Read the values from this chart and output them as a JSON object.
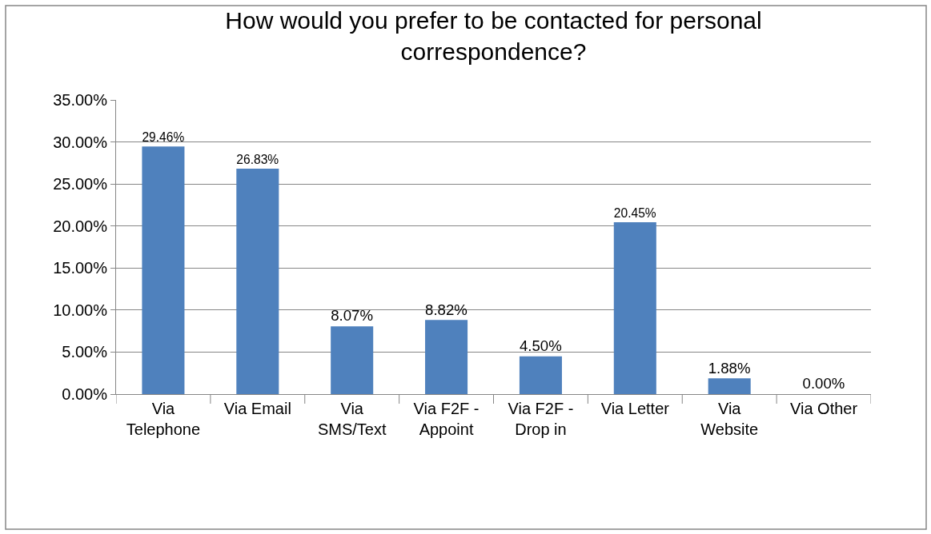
{
  "chart_data": {
    "type": "bar",
    "title": "How would you prefer to be contacted for personal\ncorrespondence?",
    "categories": [
      "Via\nTelephone",
      "Via Email",
      "Via\nSMS/Text",
      "Via F2F -\nAppoint",
      "Via F2F -\nDrop in",
      "Via Letter",
      "Via\nWebsite",
      "Via Other"
    ],
    "values": [
      29.46,
      26.83,
      8.07,
      8.82,
      4.5,
      20.45,
      1.88,
      0.0
    ],
    "value_labels": [
      "29.46%",
      "26.83%",
      "8.07%",
      "8.82%",
      "4.50%",
      "20.45%",
      "1.88%",
      "0.00%"
    ],
    "color": "#4f81bd",
    "ylim": [
      0,
      35
    ],
    "yticks": [
      {
        "value": 0,
        "label": "0.00%"
      },
      {
        "value": 5,
        "label": "5.00%"
      },
      {
        "value": 10,
        "label": "10.00%"
      },
      {
        "value": 15,
        "label": "15.00%"
      },
      {
        "value": 20,
        "label": "20.00%"
      },
      {
        "value": 25,
        "label": "25.00%"
      },
      {
        "value": 30,
        "label": "30.00%"
      },
      {
        "value": 35,
        "label": "35.00%"
      }
    ],
    "grid": "y",
    "legend": false
  }
}
